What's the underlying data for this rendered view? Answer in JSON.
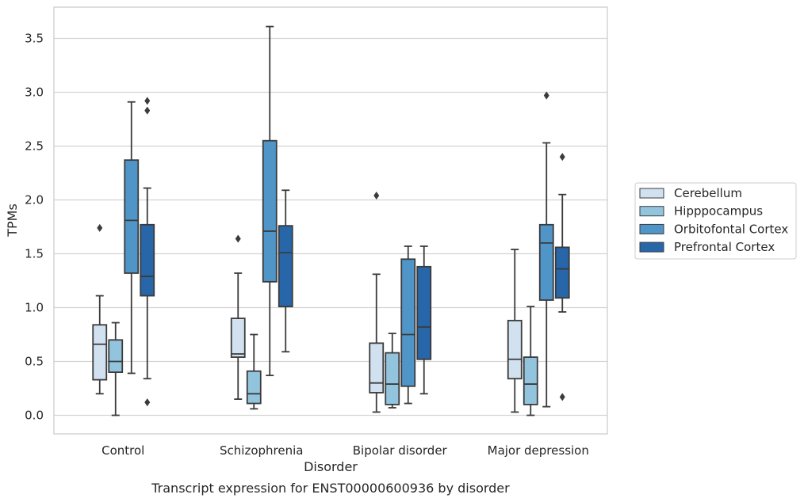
{
  "chart_data": {
    "type": "boxplot",
    "xlabel": "Disorder",
    "ylabel": "TPMs",
    "caption": "Transcript expression for ENST00000600936 by disorder",
    "ylim": [
      -0.17,
      3.78
    ],
    "yticks": [
      0.0,
      0.5,
      1.0,
      1.5,
      2.0,
      2.5,
      3.0,
      3.5
    ],
    "ytick_labels": [
      "0.0",
      "0.5",
      "1.0",
      "1.5",
      "2.0",
      "2.5",
      "3.0",
      "3.5"
    ],
    "grid": "horizontal",
    "legend_placement": "right",
    "categories": [
      "Control",
      "Schizophrenia",
      "Bipolar disorder",
      "Major depression"
    ],
    "series": [
      {
        "name": "Cerebellum",
        "color": "#d1e1f0",
        "boxes": [
          {
            "whisker_low": 0.2,
            "q1": 0.33,
            "median": 0.66,
            "q3": 0.84,
            "whisker_high": 1.11,
            "outliers": [
              1.74
            ]
          },
          {
            "whisker_low": 0.15,
            "q1": 0.54,
            "median": 0.57,
            "q3": 0.9,
            "whisker_high": 1.32,
            "outliers": [
              1.64
            ]
          },
          {
            "whisker_low": 0.03,
            "q1": 0.21,
            "median": 0.3,
            "q3": 0.67,
            "whisker_high": 1.31,
            "outliers": [
              2.04
            ]
          },
          {
            "whisker_low": 0.03,
            "q1": 0.34,
            "median": 0.52,
            "q3": 0.88,
            "whisker_high": 1.54,
            "outliers": []
          }
        ]
      },
      {
        "name": "Hipppocampus",
        "color": "#93c4de",
        "boxes": [
          {
            "whisker_low": 0.0,
            "q1": 0.4,
            "median": 0.5,
            "q3": 0.7,
            "whisker_high": 0.86,
            "outliers": []
          },
          {
            "whisker_low": 0.06,
            "q1": 0.11,
            "median": 0.2,
            "q3": 0.41,
            "whisker_high": 0.75,
            "outliers": []
          },
          {
            "whisker_low": 0.07,
            "q1": 0.1,
            "median": 0.29,
            "q3": 0.58,
            "whisker_high": 0.76,
            "outliers": []
          },
          {
            "whisker_low": 0.0,
            "q1": 0.1,
            "median": 0.29,
            "q3": 0.54,
            "whisker_high": 1.01,
            "outliers": []
          }
        ]
      },
      {
        "name": "Orbitofontal Cortex",
        "color": "#4f95c8",
        "boxes": [
          {
            "whisker_low": 0.39,
            "q1": 1.32,
            "median": 1.81,
            "q3": 2.37,
            "whisker_high": 2.91,
            "outliers": []
          },
          {
            "whisker_low": 0.37,
            "q1": 1.24,
            "median": 1.71,
            "q3": 2.55,
            "whisker_high": 3.61,
            "outliers": []
          },
          {
            "whisker_low": 0.11,
            "q1": 0.27,
            "median": 0.75,
            "q3": 1.45,
            "whisker_high": 1.57,
            "outliers": []
          },
          {
            "whisker_low": 0.08,
            "q1": 1.07,
            "median": 1.6,
            "q3": 1.77,
            "whisker_high": 2.53,
            "outliers": [
              2.97
            ]
          }
        ]
      },
      {
        "name": "Prefrontal Cortex",
        "color": "#2766a8",
        "boxes": [
          {
            "whisker_low": 0.34,
            "q1": 1.11,
            "median": 1.29,
            "q3": 1.77,
            "whisker_high": 2.11,
            "outliers": [
              0.12,
              2.83,
              2.92
            ]
          },
          {
            "whisker_low": 0.59,
            "q1": 1.01,
            "median": 1.51,
            "q3": 1.76,
            "whisker_high": 2.09,
            "outliers": []
          },
          {
            "whisker_low": 0.2,
            "q1": 0.52,
            "median": 0.82,
            "q3": 1.38,
            "whisker_high": 1.57,
            "outliers": []
          },
          {
            "whisker_low": 0.96,
            "q1": 1.09,
            "median": 1.36,
            "q3": 1.56,
            "whisker_high": 2.05,
            "outliers": [
              0.17,
              2.4
            ]
          }
        ]
      }
    ]
  }
}
